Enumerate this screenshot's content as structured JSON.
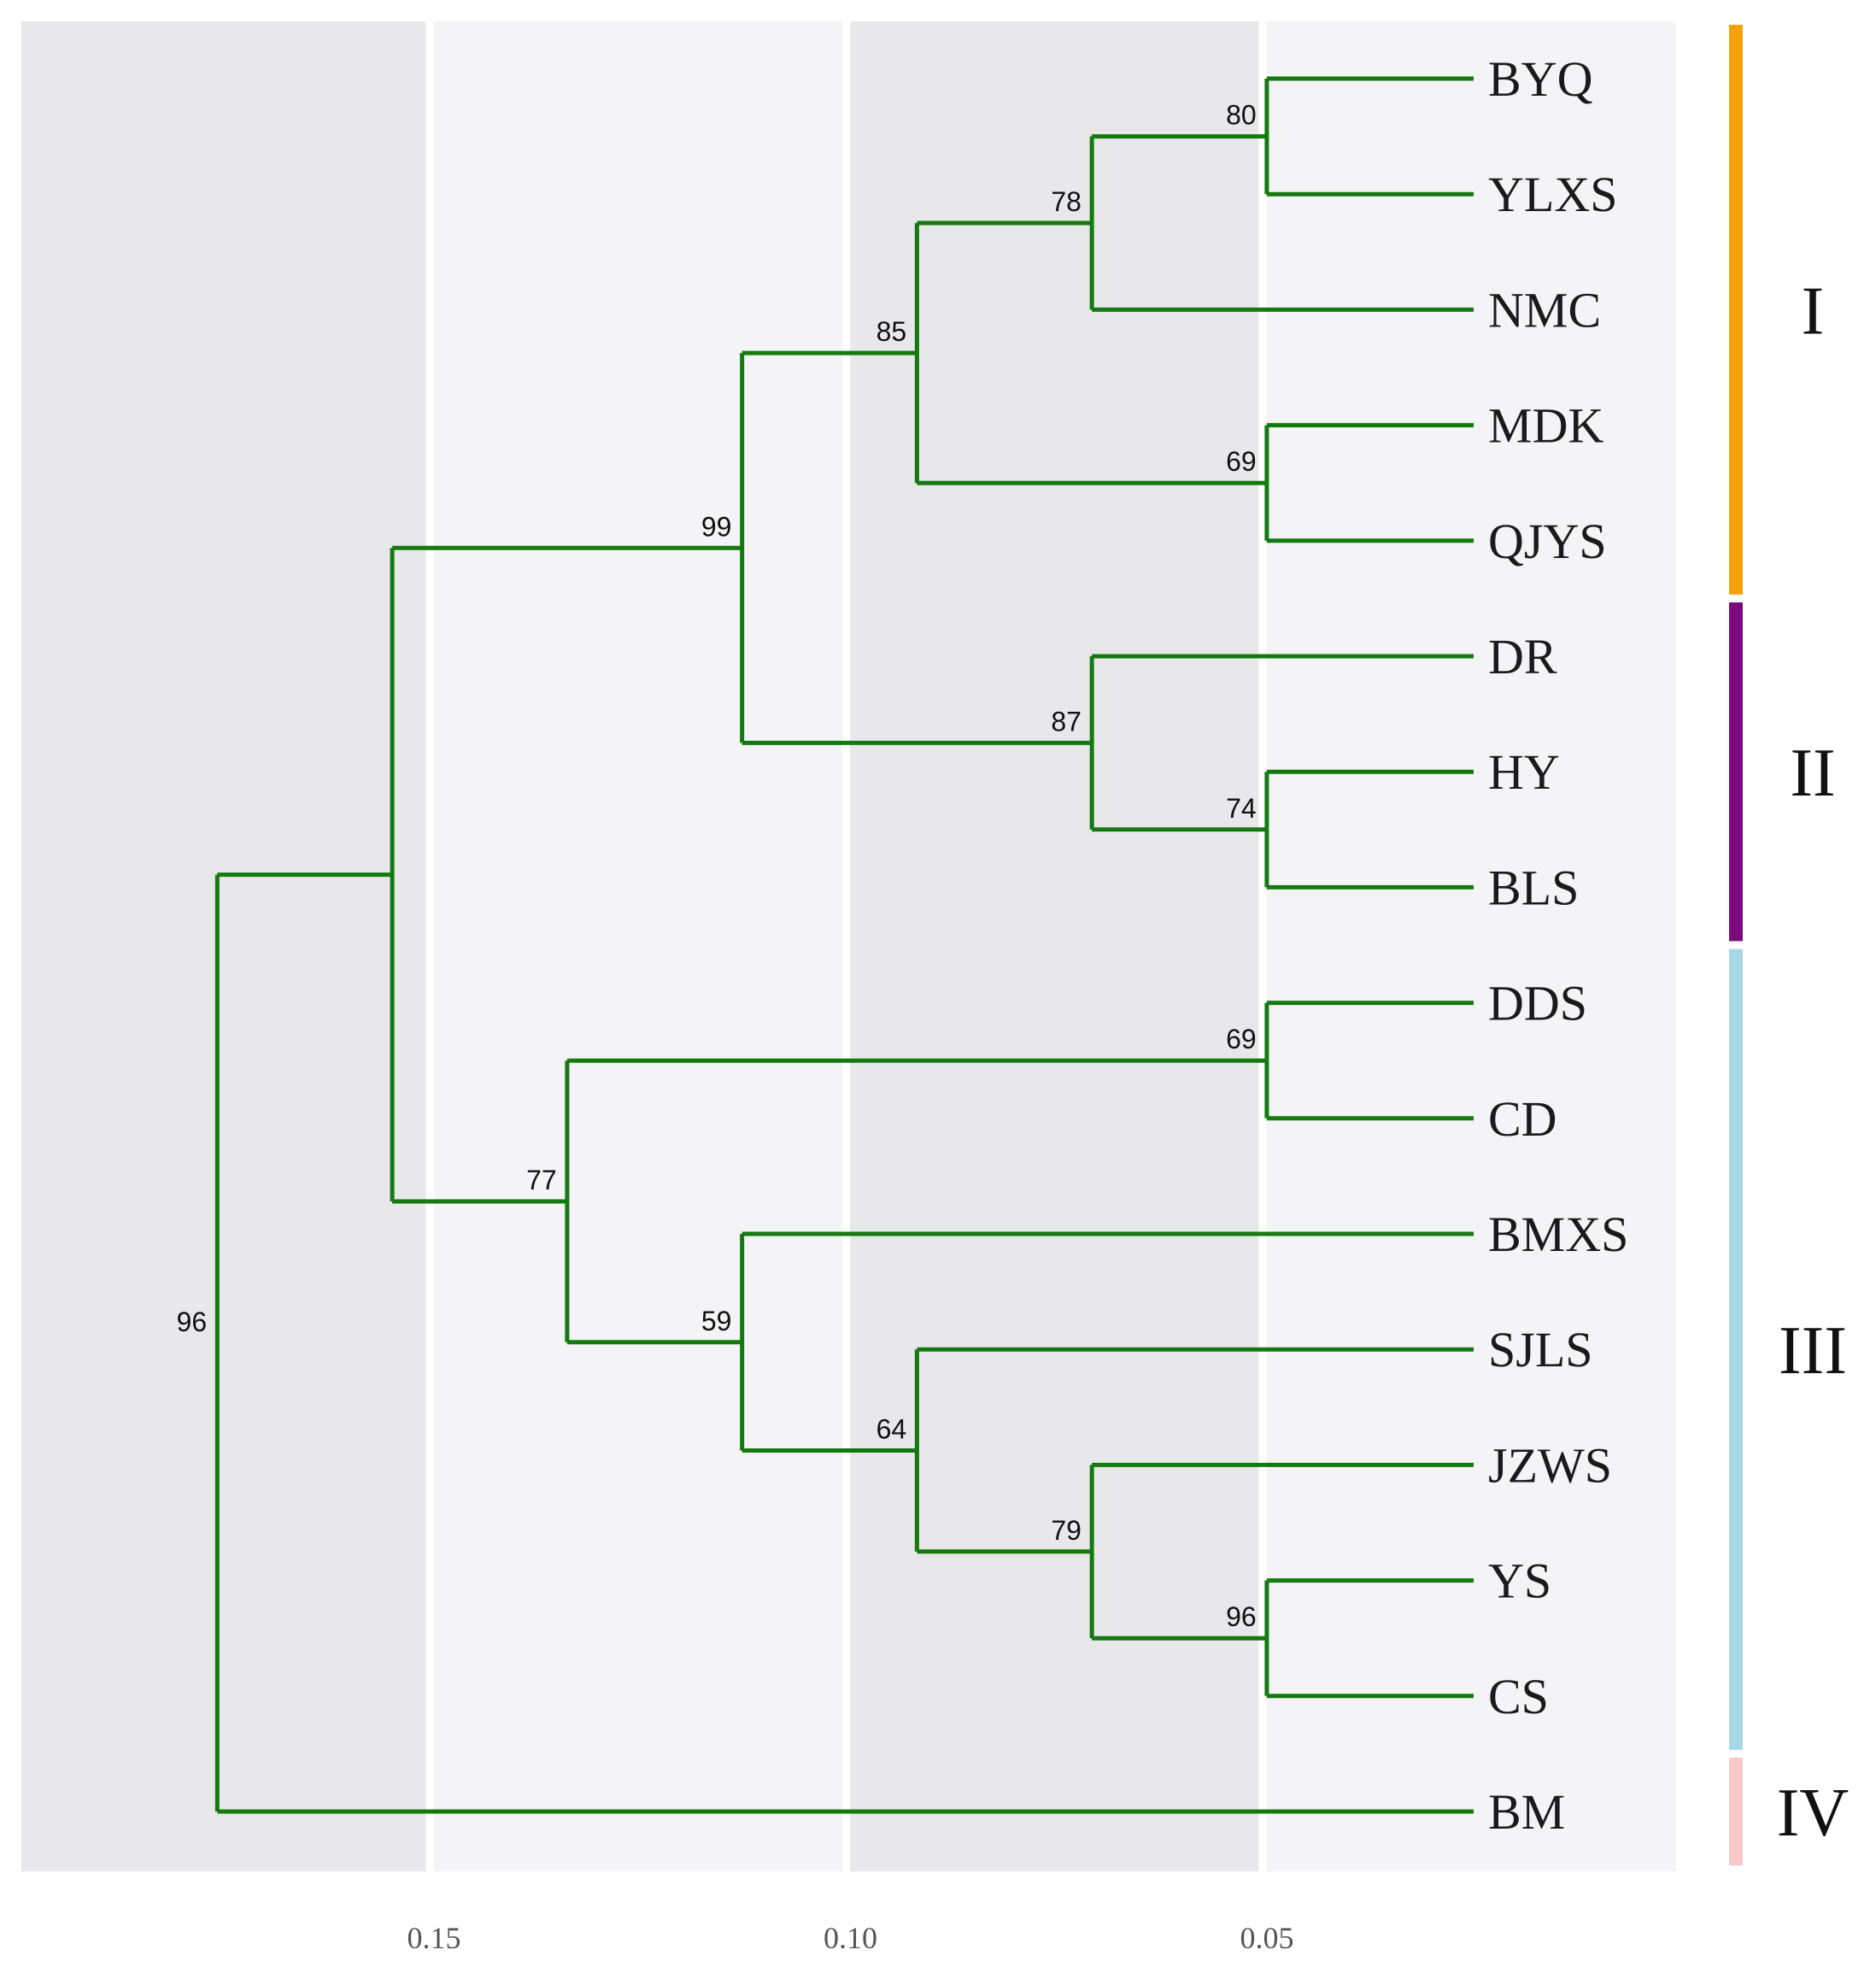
{
  "chart_data": {
    "type": "dendrogram",
    "title": "",
    "x_axis": {
      "direction": "reversed",
      "ticks": [
        {
          "value": 0.15,
          "label": "0.15"
        },
        {
          "value": 0.1,
          "label": "0.10"
        },
        {
          "value": 0.05,
          "label": "0.05"
        }
      ]
    },
    "bands": [
      {
        "from": 0.2,
        "to": 0.15,
        "shade": "dark"
      },
      {
        "from": 0.15,
        "to": 0.1,
        "shade": "light"
      },
      {
        "from": 0.1,
        "to": 0.05,
        "shade": "dark"
      },
      {
        "from": 0.05,
        "to": 0.0,
        "shade": "light"
      }
    ],
    "tips": [
      "BYQ",
      "YLXS",
      "NMC",
      "MDK",
      "QJYS",
      "DR",
      "HY",
      "BLS",
      "DDS",
      "CD",
      "BMXS",
      "SJLS",
      "JZWS",
      "YS",
      "CS",
      "BM"
    ],
    "tree": {
      "height": 0.1755,
      "support": 96,
      "children": [
        {
          "height": 0.1545,
          "support": "",
          "children": [
            {
              "height": 0.1125,
              "support": 99,
              "children": [
                {
                  "height": 0.0915,
                  "support": 85,
                  "children": [
                    {
                      "height": 0.0705,
                      "support": 78,
                      "children": [
                        {
                          "height": 0.0495,
                          "support": 80,
                          "children": [
                            {
                              "name": "BYQ"
                            },
                            {
                              "name": "YLXS"
                            }
                          ]
                        },
                        {
                          "name": "NMC"
                        }
                      ]
                    },
                    {
                      "height": 0.0495,
                      "support": 69,
                      "children": [
                        {
                          "name": "MDK"
                        },
                        {
                          "name": "QJYS"
                        }
                      ]
                    }
                  ]
                },
                {
                  "height": 0.0705,
                  "support": 87,
                  "children": [
                    {
                      "name": "DR"
                    },
                    {
                      "height": 0.0495,
                      "support": 74,
                      "children": [
                        {
                          "name": "HY"
                        },
                        {
                          "name": "BLS"
                        }
                      ]
                    }
                  ]
                }
              ]
            },
            {
              "height": 0.1335,
              "support": 77,
              "children": [
                {
                  "height": 0.0495,
                  "support": 69,
                  "children": [
                    {
                      "name": "DDS"
                    },
                    {
                      "name": "CD"
                    }
                  ]
                },
                {
                  "height": 0.1125,
                  "support": 59,
                  "children": [
                    {
                      "name": "BMXS"
                    },
                    {
                      "height": 0.0915,
                      "support": 64,
                      "children": [
                        {
                          "name": "SJLS"
                        },
                        {
                          "height": 0.0705,
                          "support": 79,
                          "children": [
                            {
                              "name": "JZWS"
                            },
                            {
                              "height": 0.0495,
                              "support": 96,
                              "children": [
                                {
                                  "name": "YS"
                                },
                                {
                                  "name": "CS"
                                }
                              ]
                            }
                          ]
                        }
                      ]
                    }
                  ]
                }
              ]
            }
          ]
        },
        {
          "name": "BM"
        }
      ]
    },
    "clades": [
      {
        "label": "I",
        "color": "#f5a20a",
        "from": "BYQ",
        "to": "QJYS"
      },
      {
        "label": "II",
        "color": "#7a0a7e",
        "from": "DR",
        "to": "BLS"
      },
      {
        "label": "III",
        "color": "#a8d8e6",
        "from": "DDS",
        "to": "CS"
      },
      {
        "label": "IV",
        "color": "#f8c8cc",
        "from": "BM",
        "to": "BM"
      }
    ],
    "colors": {
      "branch": "#147a0f",
      "band_dark": "#e8e8ea",
      "band_light": "#f4f4f6",
      "divider": "#ffffff"
    }
  }
}
